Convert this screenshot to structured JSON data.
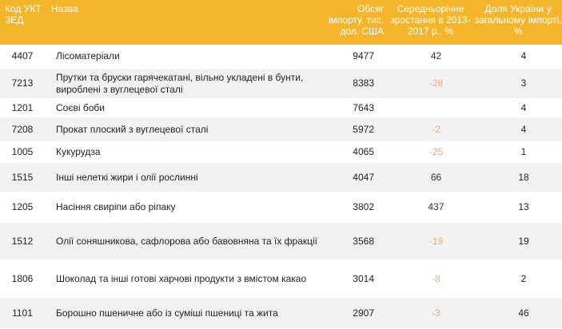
{
  "header": {
    "code": "Код УКТ ЗЕД",
    "name": "Назва",
    "import": "Обсяг імпорту, тис. дол. США",
    "growth": "Середньорічне зростання в 2013-2017 р., %",
    "share": "Доля України у загальному імпорті, %"
  },
  "rows": [
    {
      "code": "4407",
      "name": "Лісоматеріали",
      "import": "9477",
      "growth": "42",
      "share": "4"
    },
    {
      "code": "7213",
      "name": "Прутки та бруски гарячекатані, вільно укладені в бунти, вироблені з вуглецевої сталі",
      "import": "8383",
      "growth": "-28",
      "share": "3"
    },
    {
      "code": "1201",
      "name": "Соєві боби",
      "import": "7643",
      "growth": "",
      "share": "4"
    },
    {
      "code": "7208",
      "name": "Прокат плоский з вуглецевої сталі",
      "import": "5972",
      "growth": "-2",
      "share": "4"
    },
    {
      "code": "1005",
      "name": "Кукурудза",
      "import": "4065",
      "growth": "-25",
      "share": "1"
    },
    {
      "code": "1515",
      "name": "Інші нелеткі жири і олії рослинні",
      "import": "4047",
      "growth": "66",
      "share": "18"
    },
    {
      "code": "1205",
      "name": "Насіння свиріпи або ріпаку",
      "import": "3802",
      "growth": "437",
      "share": "13"
    },
    {
      "code": "1512",
      "name": "Олії соняшникова, сафлорова або бавовняна та їх фракції",
      "import": "3568",
      "growth": "-19",
      "share": "19"
    },
    {
      "code": "1806",
      "name": "Шоколад та інші готові харчові продукти з вмістом какао",
      "import": "3014",
      "growth": "-8",
      "share": "2"
    },
    {
      "code": "1101",
      "name": "Борошно пшеничне або із суміші пшениці та жита",
      "import": "2907",
      "growth": "-3",
      "share": "46"
    }
  ],
  "colors": {
    "header_bg": "#f5b52a",
    "negative": "#f0a87a",
    "row_alt": "#f2f2f2"
  }
}
